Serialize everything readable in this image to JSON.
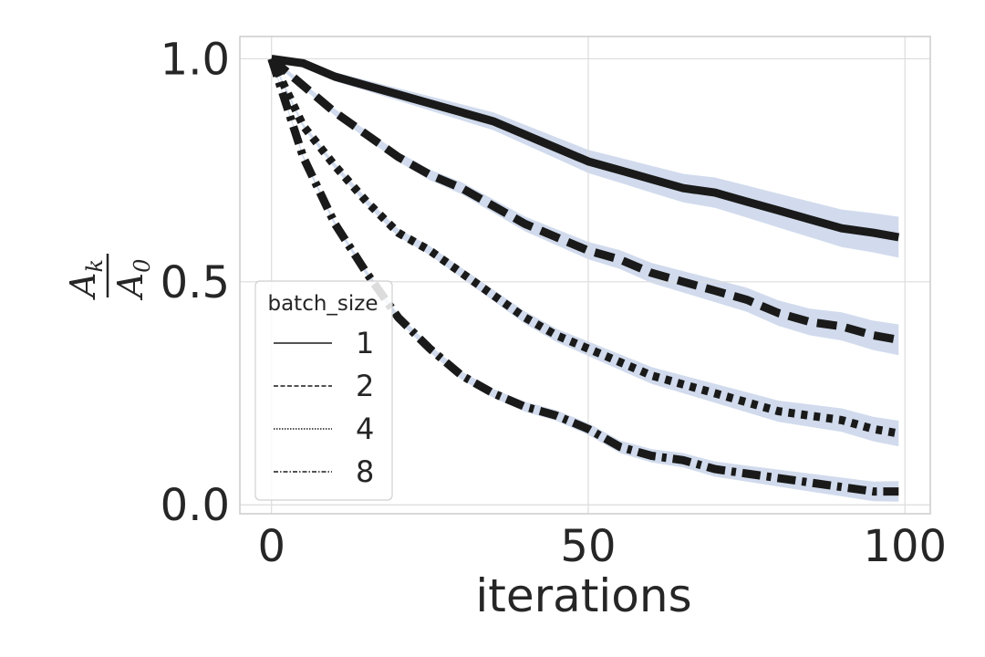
{
  "chart_data": {
    "type": "line",
    "xlabel": "iterations",
    "ylabel": {
      "numerator_base": "A",
      "numerator_sub": "k",
      "denominator_base": "A",
      "denominator_sub": "0"
    },
    "xlim": [
      -5,
      104
    ],
    "ylim": [
      -0.02,
      1.05
    ],
    "xticks": [
      0,
      50,
      100
    ],
    "xtick_labels": [
      "0",
      "50",
      "100"
    ],
    "yticks": [
      0.0,
      0.5,
      1.0
    ],
    "ytick_labels": [
      "0.0",
      "0.5",
      "1.0"
    ],
    "grid": true,
    "legend": {
      "title": "batch_size",
      "position": "lower-left",
      "entries": [
        "1",
        "2",
        "4",
        "8"
      ]
    },
    "colors": {
      "line": "#1a1a1a",
      "band": "#c6d2e8",
      "grid": "#dcdcdc",
      "spine": "#cccccc"
    },
    "x": [
      0,
      5,
      10,
      15,
      20,
      25,
      30,
      35,
      40,
      45,
      50,
      55,
      60,
      65,
      70,
      75,
      80,
      85,
      90,
      95,
      99
    ],
    "series": [
      {
        "name": "1",
        "style": "solid",
        "values": [
          1.0,
          0.99,
          0.96,
          0.94,
          0.92,
          0.9,
          0.88,
          0.86,
          0.83,
          0.8,
          0.77,
          0.75,
          0.73,
          0.71,
          0.7,
          0.68,
          0.66,
          0.64,
          0.62,
          0.61,
          0.6
        ],
        "band": 0.04
      },
      {
        "name": "2",
        "style": "dashed",
        "values": [
          1.0,
          0.94,
          0.88,
          0.83,
          0.78,
          0.74,
          0.71,
          0.67,
          0.63,
          0.6,
          0.57,
          0.55,
          0.52,
          0.5,
          0.48,
          0.46,
          0.43,
          0.41,
          0.4,
          0.38,
          0.37
        ],
        "band": 0.03
      },
      {
        "name": "4",
        "style": "dotted",
        "values": [
          1.0,
          0.85,
          0.76,
          0.68,
          0.61,
          0.57,
          0.52,
          0.47,
          0.42,
          0.38,
          0.35,
          0.32,
          0.29,
          0.27,
          0.25,
          0.23,
          0.21,
          0.2,
          0.19,
          0.17,
          0.16
        ],
        "band": 0.025
      },
      {
        "name": "8",
        "style": "dashdot",
        "values": [
          1.0,
          0.78,
          0.63,
          0.52,
          0.42,
          0.35,
          0.29,
          0.25,
          0.22,
          0.2,
          0.17,
          0.13,
          0.11,
          0.1,
          0.08,
          0.07,
          0.06,
          0.05,
          0.04,
          0.03,
          0.03
        ],
        "band": 0.02
      }
    ]
  }
}
